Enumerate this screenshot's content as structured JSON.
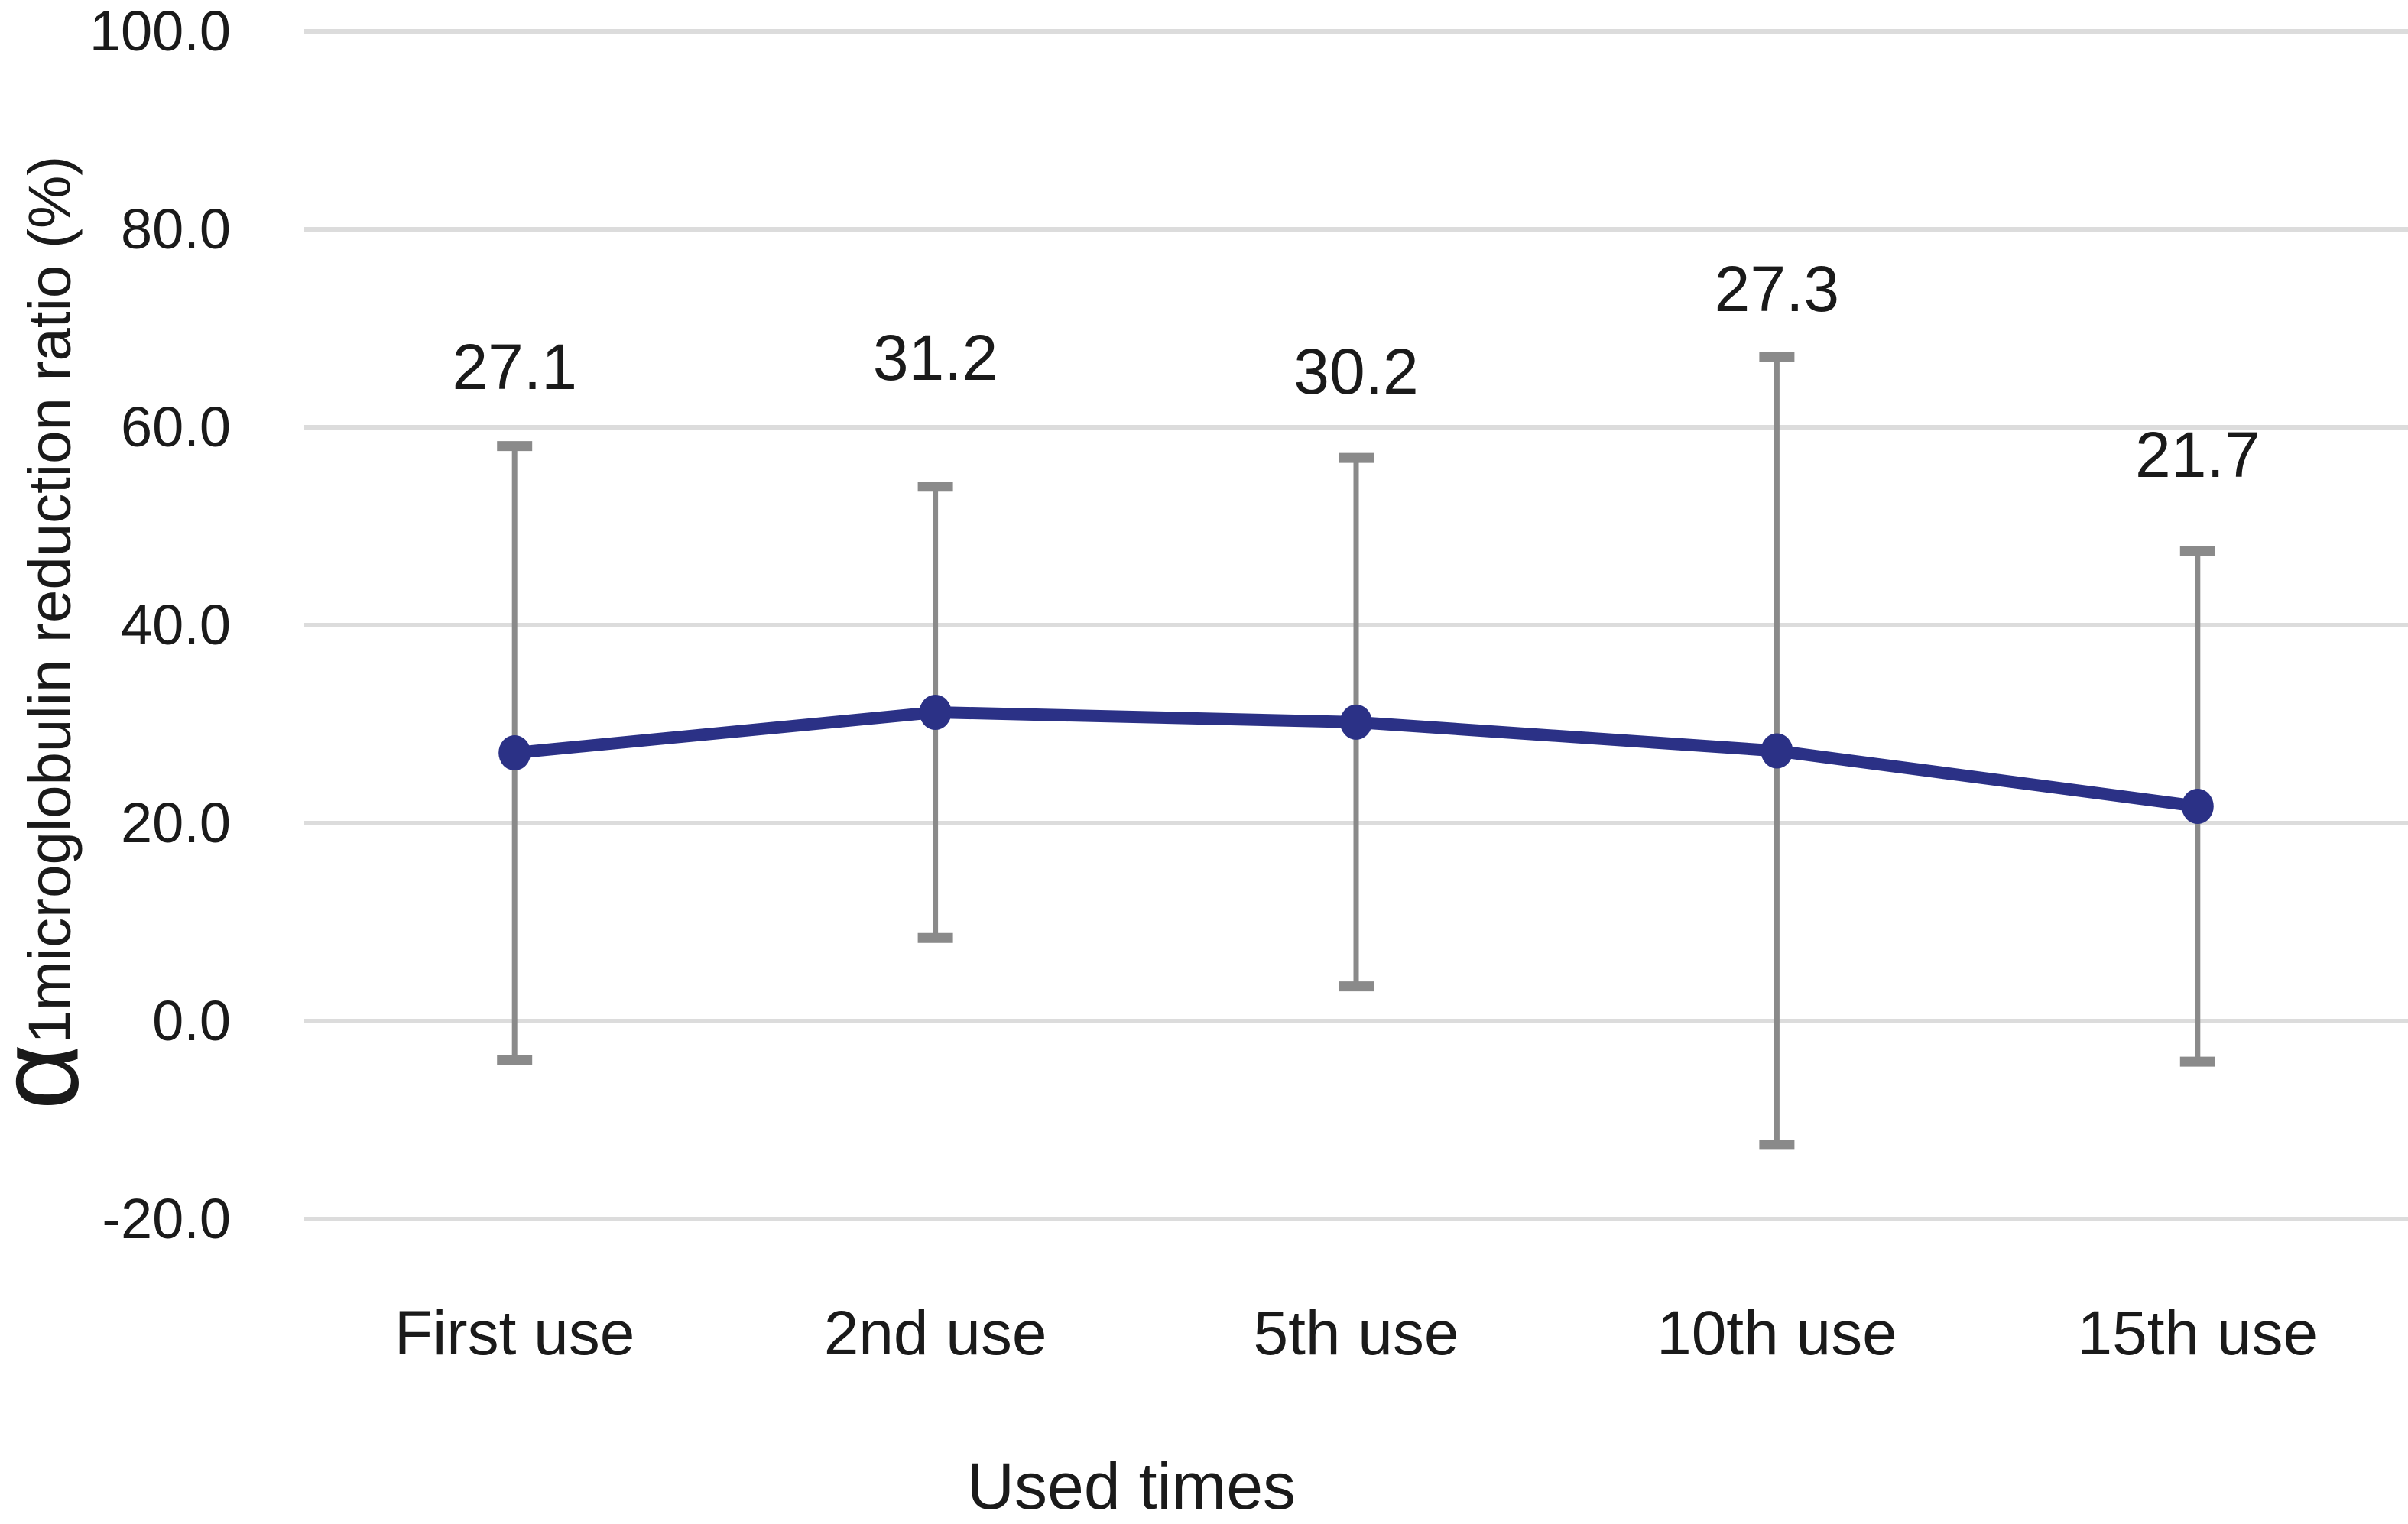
{
  "chart_data": {
    "type": "line",
    "title": "",
    "xlabel": "Used times",
    "ylabel": "α1microglobulin reduction ratio (%)",
    "ylabel_alpha": "α",
    "ylabel_rest": "1microglobulin reduction ratio (%)",
    "categories": [
      "First use",
      "2nd use",
      "5th use",
      "10th use",
      "15th use"
    ],
    "values": [
      27.1,
      31.2,
      30.2,
      27.3,
      21.7
    ],
    "point_labels": [
      "27.1",
      "31.2",
      "30.2",
      "27.3",
      "21.7"
    ],
    "error_bars": [
      31.0,
      22.8,
      26.7,
      39.8,
      25.8
    ],
    "y_ticks": [
      {
        "label": "100.0",
        "value": 100
      },
      {
        "label": "80.0",
        "value": 80
      },
      {
        "label": "60.0",
        "value": 60
      },
      {
        "label": "40.0",
        "value": 40
      },
      {
        "label": "20.0",
        "value": 20
      },
      {
        "label": "0.0",
        "value": 0
      },
      {
        "label": "-20.0",
        "value": -20
      }
    ],
    "ylim": [
      -20,
      100
    ],
    "grid": true,
    "legend": "none",
    "marker": "circle",
    "colors": {
      "line": "#2b3186",
      "marker": "#2b3186",
      "error_bar": "#8a8a8a",
      "gridline": "#dcdcdc",
      "text": "#1a1a1a",
      "background": "#ffffff"
    }
  }
}
